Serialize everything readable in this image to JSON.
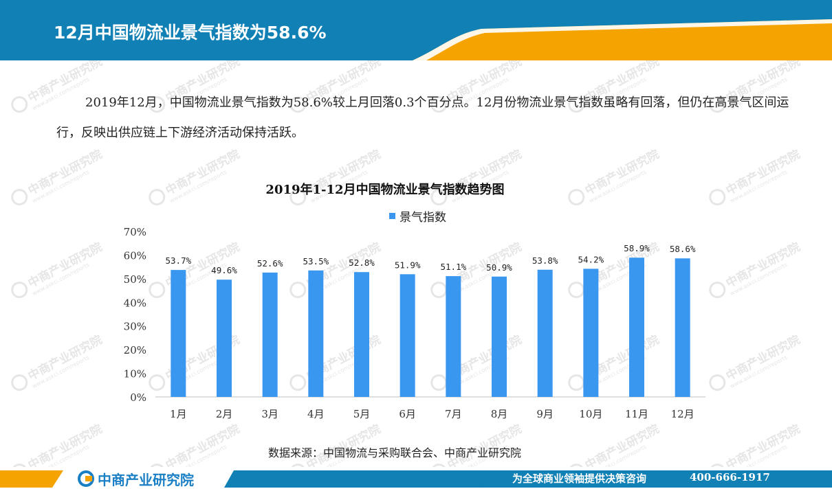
{
  "header": {
    "title": "12月中国物流业景气指数为58.6%"
  },
  "paragraph": "2019年12月，中国物流业景气指数为58.6%较上月回落0.3个百分点。12月份物流业景气指数虽略有回落，但仍在高景气区间运行，反映出供应链上下游经济活动保持活跃。",
  "watermark": {
    "text": "中商产业研究院",
    "url": "www.askci.com/reports"
  },
  "chart_data": {
    "type": "bar",
    "title": "2019年1-12月中国物流业景气指数趋势图",
    "categories": [
      "1月",
      "2月",
      "3月",
      "4月",
      "5月",
      "6月",
      "7月",
      "8月",
      "9月",
      "10月",
      "11月",
      "12月"
    ],
    "series": [
      {
        "name": "景气指数",
        "values": [
          53.7,
          49.6,
          52.6,
          53.5,
          52.8,
          51.9,
          51.1,
          50.9,
          53.8,
          54.2,
          58.9,
          58.6
        ],
        "labels": [
          "53.7%",
          "49.6%",
          "52.6%",
          "53.5%",
          "52.8%",
          "51.9%",
          "51.1%",
          "50.9%",
          "53.8%",
          "54.2%",
          "58.9%",
          "58.6%"
        ]
      }
    ],
    "yticks": [
      "0%",
      "10%",
      "20%",
      "30%",
      "40%",
      "50%",
      "60%",
      "70%"
    ],
    "ylim": [
      0,
      70
    ],
    "grid": false,
    "legend_position": "top-center",
    "bar_color": "#3a97f0"
  },
  "source": "数据来源：中国物流与采购联合会、中商产业研究院",
  "footer": {
    "logo": "中商产业研究院",
    "slogan": "为全球商业领袖提供决策咨询",
    "phone": "400-666-1917"
  },
  "colors": {
    "header_blue": "#1180b4",
    "accent_orange": "#f5a300",
    "footer_blue": "#1180b4"
  }
}
